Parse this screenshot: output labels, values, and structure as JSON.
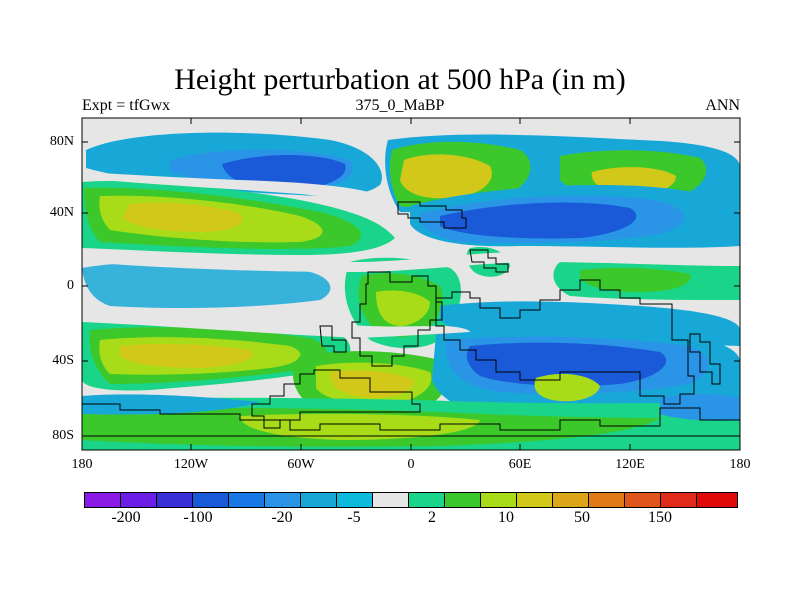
{
  "title": "Height perturbation at 500 hPa (in m)",
  "subtitle_left": "Expt = tfGwx",
  "subtitle_center": "375_0_MaBP",
  "subtitle_right": "ANN",
  "axes": {
    "y_ticks": [
      "80N",
      "40N",
      "0",
      "40S",
      "80S"
    ],
    "x_ticks": [
      "180",
      "120W",
      "60W",
      "0",
      "60E",
      "120E",
      "180"
    ]
  },
  "colorbar": {
    "colors": [
      "#8a1ae6",
      "#6a1ee6",
      "#3a2ed9",
      "#1a5ad9",
      "#1a78e6",
      "#2a95e6",
      "#18a8d8",
      "#0dbadb",
      "#e6e6e6",
      "#1ad48a",
      "#3cc82a",
      "#a8dc18",
      "#d2c81a",
      "#dca61a",
      "#e07a14",
      "#e0561a",
      "#e02a1a",
      "#e00a0a"
    ],
    "tick_labels": [
      "-200",
      "-100",
      "-20",
      "-5",
      "2",
      "10",
      "50",
      "150"
    ]
  },
  "palette": {
    "neutral": "#e6e6e6",
    "blue_light": "#18a8d8",
    "blue_mid": "#2a95e6",
    "blue_dark": "#1a5ad9",
    "green": "#3cc82a",
    "green_light": "#1ad48a",
    "yellow_green": "#a8dc18",
    "yellow": "#d2c81a",
    "coast": "#000000"
  }
}
